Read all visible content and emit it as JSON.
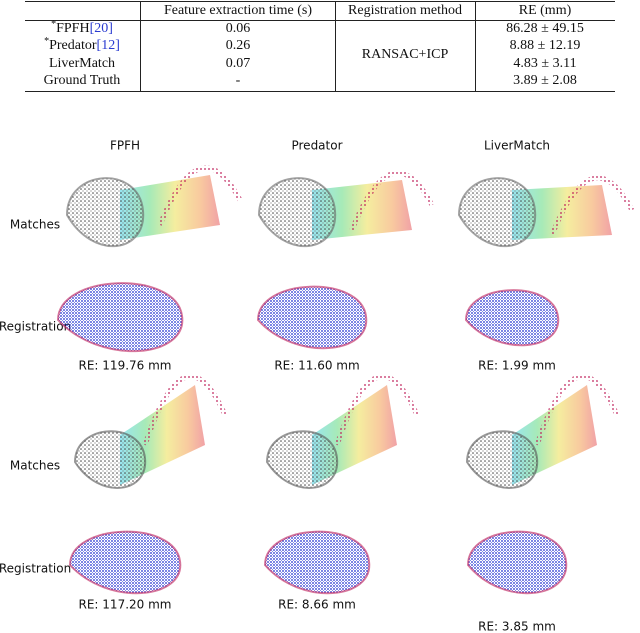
{
  "table": {
    "headers": [
      "Feature extraction time (s)",
      "Registration method",
      "RE (mm)"
    ],
    "rows": [
      {
        "marker": "*",
        "name": "FPFH",
        "citation": "[20]",
        "time": "0.06",
        "re": "86.28 ± 49.15"
      },
      {
        "marker": "*",
        "name": "Predator",
        "citation": "[12]",
        "time": "0.26",
        "re": "8.88 ± 12.19"
      },
      {
        "name": "LiverMatch",
        "time": "0.07",
        "re": "4.83 ± 3.11"
      },
      {
        "name": "Ground Truth",
        "time": "-",
        "re": "3.89 ± 2.08"
      }
    ],
    "registration_method": "RANSAC+ICP"
  },
  "figure": {
    "columns": [
      "FPFH",
      "Predator",
      "LiverMatch"
    ],
    "row_labels": [
      "Matches",
      "Registration",
      "Matches",
      "Registration"
    ],
    "captions": [
      [
        "RE: 119.76 mm",
        "RE: 11.60 mm",
        "RE: 1.99 mm"
      ],
      [
        "RE: 117.20 mm",
        "RE: 8.66 mm",
        "RE: 3.85 mm"
      ]
    ]
  }
}
